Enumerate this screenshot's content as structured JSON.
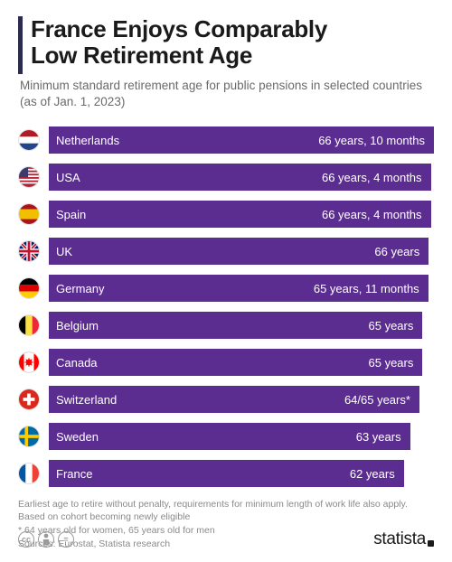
{
  "title_line1": "France Enjoys Comparably",
  "title_line2": "Low Retirement Age",
  "subtitle": "Minimum standard retirement age for public pensions in selected countries (as of Jan. 1, 2023)",
  "chart": {
    "type": "bar",
    "bar_color": "#5c2d91",
    "max_value": 802,
    "rows": [
      {
        "country": "Netherlands",
        "value_label": "66 years, 10 months",
        "months": 802,
        "flag": "nl"
      },
      {
        "country": "USA",
        "value_label": "66 years, 4 months",
        "months": 796,
        "flag": "us"
      },
      {
        "country": "Spain",
        "value_label": "66 years, 4 months",
        "months": 796,
        "flag": "es"
      },
      {
        "country": "UK",
        "value_label": "66 years",
        "months": 792,
        "flag": "uk"
      },
      {
        "country": "Germany",
        "value_label": "65 years, 11 months",
        "months": 791,
        "flag": "de"
      },
      {
        "country": "Belgium",
        "value_label": "65 years",
        "months": 780,
        "flag": "be"
      },
      {
        "country": "Canada",
        "value_label": "65 years",
        "months": 780,
        "flag": "ca"
      },
      {
        "country": "Switzerland",
        "value_label": "64/65 years*",
        "months": 774,
        "flag": "ch"
      },
      {
        "country": "Sweden",
        "value_label": "63 years",
        "months": 756,
        "flag": "se"
      },
      {
        "country": "France",
        "value_label": "62 years",
        "months": 744,
        "flag": "fr"
      }
    ]
  },
  "note_line1": "Earliest age to retire without penalty, requirements for minimum length of work life also apply. Based on cohort becoming newly eligible",
  "note_line2": "* 64 years old for women, 65 years old for men",
  "note_sources": "Sources: Eurostat, Statista research",
  "footer": {
    "cc": [
      "cc",
      "by",
      "nd"
    ],
    "logo": "statista"
  },
  "colors": {
    "accent_bar": "#2b2b4f",
    "text_dark": "#1a1a1a",
    "text_muted": "#6a6a6a",
    "text_light": "#8a8a8a"
  }
}
